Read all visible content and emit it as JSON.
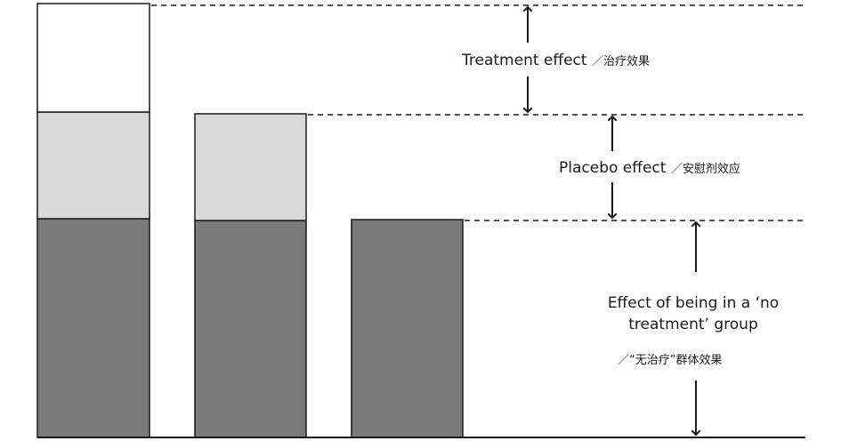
{
  "labels": {
    "treatment_effect": "Treatment effect",
    "treatment_effect_zh": "／治疗效果",
    "placebo_effect": "Placebo effect",
    "placebo_effect_zh": "／安慰剂效应",
    "no_treatment_line1": "Effect of being in a ‘no",
    "no_treatment_line2": "treatment’ group",
    "no_treatment_zh": "／“无治疗”群体效果"
  },
  "colors": {
    "no_treatment_segment": "#7a7a7a",
    "placebo_segment": "#d9d9d9",
    "treatment_segment": "#ffffff",
    "stroke": "#1a1a1a"
  }
}
